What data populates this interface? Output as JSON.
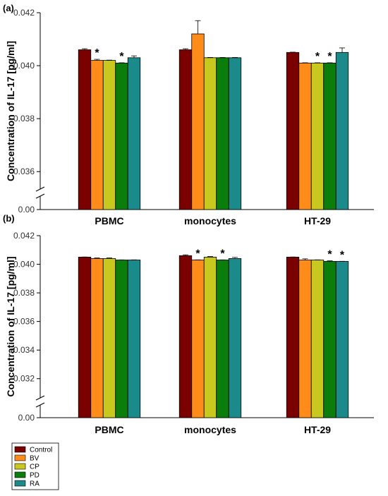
{
  "chart_data": [
    {
      "type": "bar",
      "panel_label": "(a)",
      "ylabel": "Concentration of IL-17 [pg/ml]",
      "categories": [
        "PBMC",
        "monocytes",
        "HT-29"
      ],
      "y_ticks": [
        "0.036",
        "0.038",
        "0.040",
        "0.042"
      ],
      "y_broken_tick": "0.00",
      "ylim": [
        0.0355,
        0.042
      ],
      "axis_break": true,
      "series": [
        {
          "name": "Control",
          "values": [
            0.0406,
            0.0406,
            0.0405
          ],
          "errors": [
            4e-05,
            4e-05,
            1e-05
          ]
        },
        {
          "name": "BV",
          "values": [
            0.0402,
            0.0412,
            0.0401
          ],
          "errors": [
            4e-05,
            0.0005,
            1e-05
          ]
        },
        {
          "name": "CP",
          "values": [
            0.0402,
            0.0403,
            0.0401
          ],
          "errors": [
            1e-05,
            1e-05,
            1e-05
          ]
        },
        {
          "name": "PD",
          "values": [
            0.0401,
            0.0403,
            0.0401
          ],
          "errors": [
            1e-05,
            1e-05,
            1e-05
          ]
        },
        {
          "name": "RA",
          "values": [
            0.0403,
            0.0403,
            0.0405
          ],
          "errors": [
            7e-05,
            1e-05,
            0.00017
          ]
        }
      ],
      "significance": [
        {
          "category": 0,
          "series": 1,
          "label": "*"
        },
        {
          "category": 0,
          "series": 3,
          "label": "*"
        },
        {
          "category": 2,
          "series": 2,
          "label": "*"
        },
        {
          "category": 2,
          "series": 3,
          "label": "*"
        }
      ]
    },
    {
      "type": "bar",
      "panel_label": "(b)",
      "ylabel": "Concentration of IL-17 [pg/ml]",
      "categories": [
        "PBMC",
        "monocytes",
        "HT-29"
      ],
      "y_ticks": [
        "0.032",
        "0.034",
        "0.036",
        "0.038",
        "0.040",
        "0.042"
      ],
      "y_broken_tick": "0.00",
      "ylim": [
        0.031,
        0.042
      ],
      "axis_break": true,
      "series": [
        {
          "name": "Control",
          "values": [
            0.0405,
            0.0406,
            0.0405
          ],
          "errors": [
            1e-05,
            6e-05,
            1e-05
          ]
        },
        {
          "name": "BV",
          "values": [
            0.0404,
            0.0403,
            0.0403
          ],
          "errors": [
            4e-05,
            1e-05,
            8e-05
          ]
        },
        {
          "name": "CP",
          "values": [
            0.0404,
            0.0405,
            0.0403
          ],
          "errors": [
            4e-05,
            4e-05,
            1e-05
          ]
        },
        {
          "name": "PD",
          "values": [
            0.0403,
            0.0403,
            0.0402
          ],
          "errors": [
            1e-05,
            1e-05,
            4e-05
          ]
        },
        {
          "name": "RA",
          "values": [
            0.0403,
            0.0404,
            0.0402
          ],
          "errors": [
            1e-05,
            8e-05,
            1e-05
          ]
        }
      ],
      "significance": [
        {
          "category": 1,
          "series": 1,
          "label": "*"
        },
        {
          "category": 1,
          "series": 3,
          "label": "*"
        },
        {
          "category": 2,
          "series": 3,
          "label": "*"
        },
        {
          "category": 2,
          "series": 4,
          "label": "*"
        }
      ]
    }
  ],
  "legend": {
    "placement": "bottom-left",
    "entries": [
      "Control",
      "BV",
      "CP",
      "PD",
      "RA"
    ]
  },
  "colors": {
    "Control": "#7b0000",
    "BV": "#ff8c1a",
    "CP": "#c8c81e",
    "PD": "#0a7d0a",
    "RA": "#1a8a8a"
  }
}
